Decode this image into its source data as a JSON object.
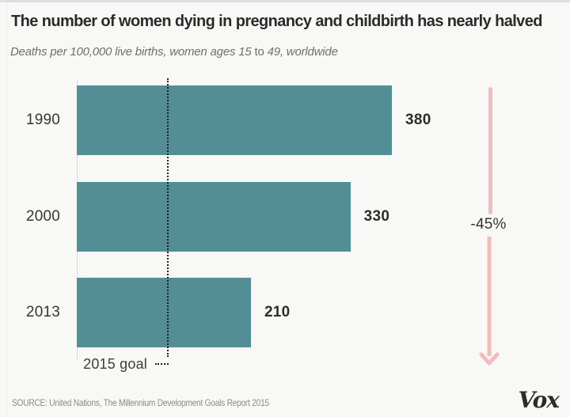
{
  "header": {
    "title": "The number of women dying in pregnancy and childbirth has nearly halved",
    "subtitle": {
      "part1": "Deaths per 100,000 live births, women ages 15 ",
      "part2": "to",
      "part3": " 49, worldwide"
    }
  },
  "chart_data": {
    "type": "bar",
    "orientation": "horizontal",
    "title": "The number of women dying in pregnancy and childbirth has nearly halved",
    "subtitle": "Deaths per 100,000 live births, women ages 15 to 49, worldwide",
    "categories": [
      "1990",
      "2000",
      "2013"
    ],
    "values": [
      380,
      330,
      210
    ],
    "xlim": [
      0,
      380
    ],
    "grid": false,
    "bar_color": "#538e96",
    "value_label_color": "#2d2d2d",
    "goal_line": {
      "label": "2015 goal",
      "value": 110,
      "style": "dotted",
      "color": "#1f1f1f"
    },
    "annotation": {
      "label": "-45%",
      "arrow_color": "#f5babc",
      "arrow_direction": "down"
    }
  },
  "footer": {
    "source": "SOURCE: United Nations, The Millennium Development Goals Report 2015",
    "logo": "Vox"
  }
}
